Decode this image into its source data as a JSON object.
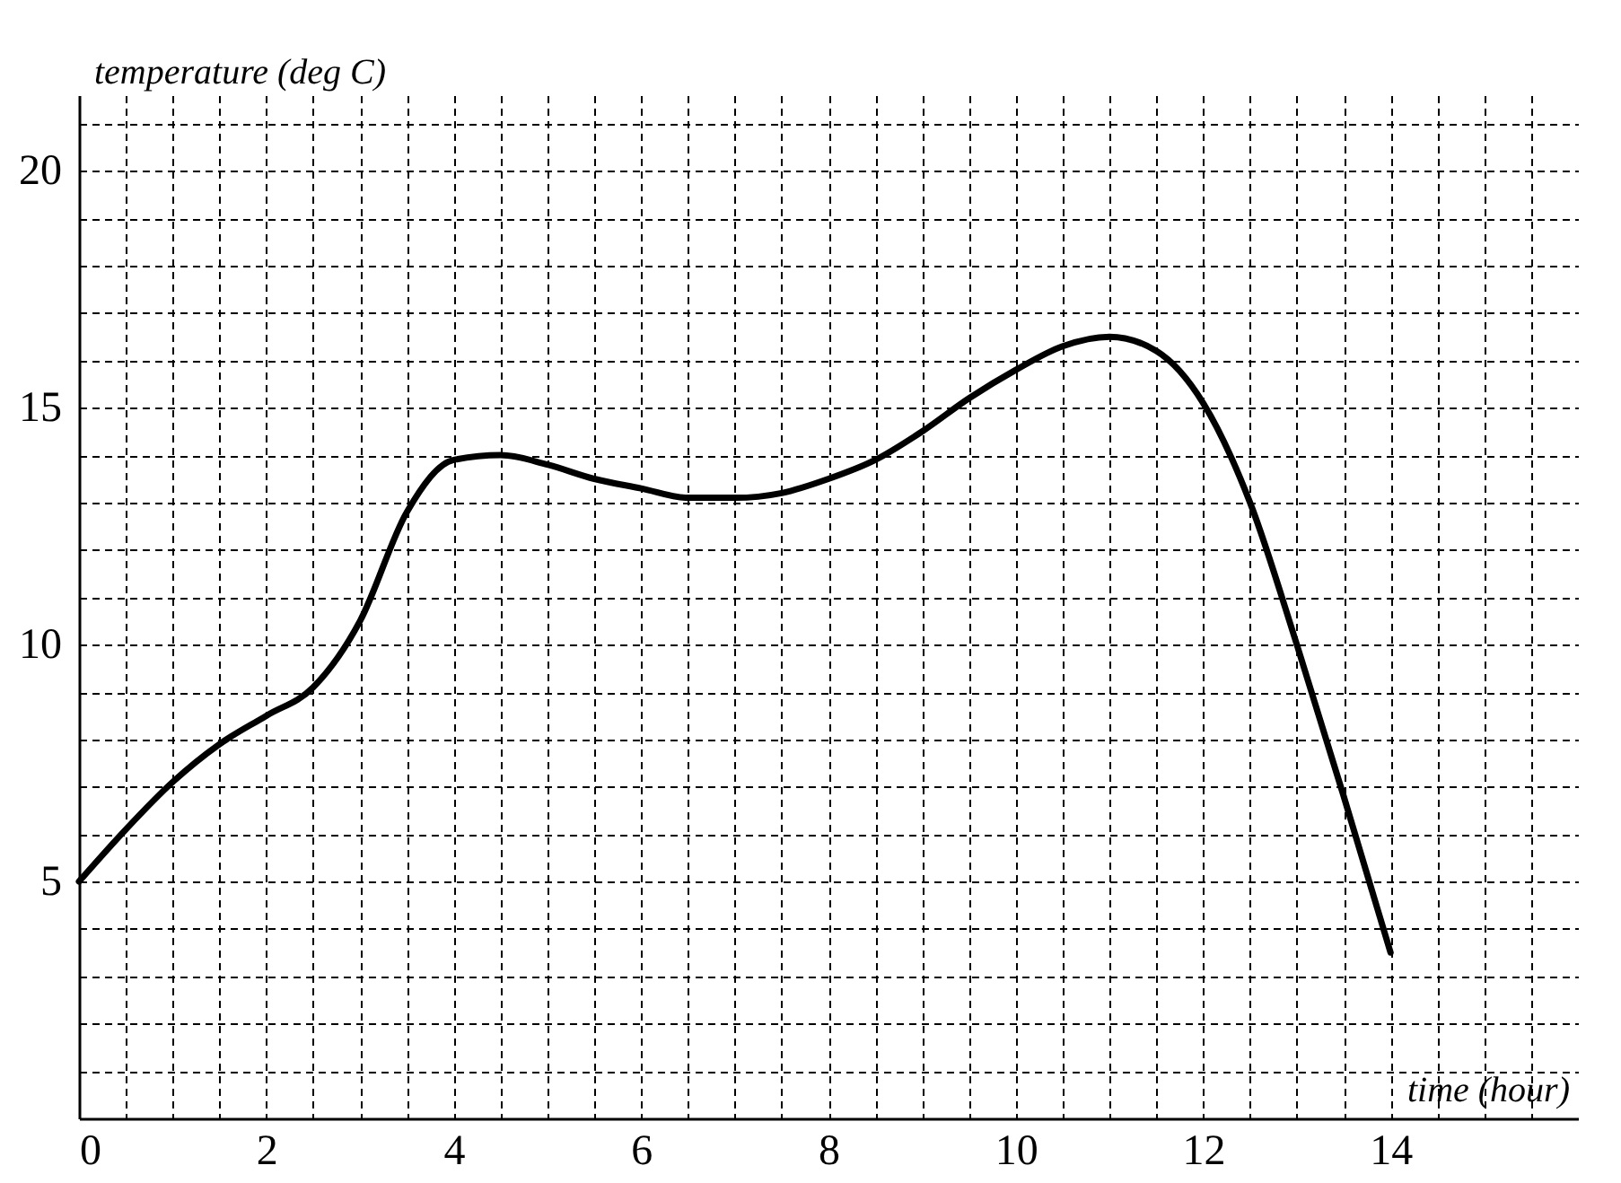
{
  "chart_data": {
    "type": "line",
    "xlabel": "time (hour)",
    "ylabel": "temperature (deg C)",
    "x": [
      0,
      0.5,
      1,
      1.5,
      2,
      2.5,
      3,
      3.5,
      4,
      4.5,
      5,
      5.5,
      6,
      6.5,
      7,
      7.5,
      8,
      8.5,
      9,
      9.5,
      10,
      10.5,
      11,
      11.5,
      12,
      12.5,
      13,
      13.5,
      14
    ],
    "series": [
      {
        "color": "#000000",
        "values": [
          5,
          6.1,
          7.1,
          7.9,
          8.5,
          9.1,
          10.5,
          12.8,
          13.9,
          14,
          13.8,
          13.5,
          13.3,
          13.1,
          13.1,
          13.2,
          13.5,
          13.9,
          14.5,
          15.2,
          15.8,
          16.3,
          16.5,
          16.2,
          15.1,
          13,
          10,
          6.8,
          3.5
        ]
      }
    ],
    "xlim": [
      0,
      16
    ],
    "ylim": [
      0,
      21.6
    ],
    "xticks": [
      0,
      {
        "value": 0.5,
        "label": null
      },
      {
        "value": 1,
        "label": null
      },
      {
        "value": 1.5,
        "label": null
      },
      2,
      {
        "value": 2.5,
        "label": null
      },
      {
        "value": 3,
        "label": null
      },
      {
        "value": 3.5,
        "label": null
      },
      4,
      {
        "value": 4.5,
        "label": null
      },
      {
        "value": 5,
        "label": null
      },
      {
        "value": 5.5,
        "label": null
      },
      6,
      {
        "value": 6.5,
        "label": null
      },
      {
        "value": 7,
        "label": null
      },
      {
        "value": 7.5,
        "label": null
      },
      8,
      {
        "value": 8.5,
        "label": null
      },
      {
        "value": 9,
        "label": null
      },
      {
        "value": 9.5,
        "label": null
      },
      10,
      {
        "value": 10.5,
        "label": null
      },
      {
        "value": 11,
        "label": null
      },
      {
        "value": 11.5,
        "label": null
      },
      12,
      {
        "value": 12.5,
        "label": null
      },
      {
        "value": 13,
        "label": null
      },
      {
        "value": 13.5,
        "label": null
      },
      14,
      {
        "value": 14.5,
        "label": null
      },
      {
        "value": 15,
        "label": null
      },
      {
        "value": 15.5,
        "label": null
      }
    ],
    "yticks": [
      {
        "value": 1,
        "label": null
      },
      {
        "value": 2,
        "label": null
      },
      {
        "value": 3,
        "label": null
      },
      {
        "value": 4,
        "label": null
      },
      5,
      {
        "value": 6,
        "label": null
      },
      {
        "value": 7,
        "label": null
      },
      {
        "value": 8,
        "label": null
      },
      {
        "value": 9,
        "label": null
      },
      10,
      {
        "value": 11,
        "label": null
      },
      {
        "value": 12,
        "label": null
      },
      {
        "value": 13,
        "label": null
      },
      {
        "value": 14,
        "label": null
      },
      15,
      {
        "value": 16,
        "label": null
      },
      {
        "value": 17,
        "label": null
      },
      {
        "value": 18,
        "label": null
      },
      {
        "value": 19,
        "label": null
      },
      20,
      {
        "value": 21,
        "label": null
      }
    ],
    "grid": true,
    "line_style": "solid"
  }
}
